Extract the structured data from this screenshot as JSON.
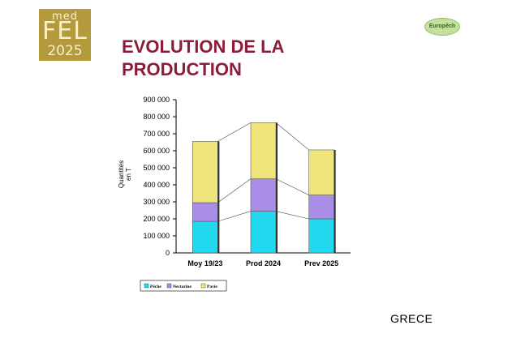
{
  "logos": {
    "medfel": {
      "line1": "med",
      "line2": "FEL",
      "line3": "2025",
      "color": "#b49a3c"
    },
    "europech": {
      "text": "Europêch",
      "color": "#8fbf56"
    }
  },
  "slide": {
    "title_line1": "EVOLUTION DE LA",
    "title_line2": "PRODUCTION",
    "country": "GRECE"
  },
  "chart_data": {
    "type": "bar",
    "stacked": true,
    "categories": [
      "Moy 19/23",
      "Prod 2024",
      "Prev 2025"
    ],
    "series": [
      {
        "name": "Pêche",
        "values": [
          185000,
          245000,
          200000
        ],
        "color": "#22d8ee"
      },
      {
        "name": "Nectarine",
        "values": [
          110000,
          190000,
          140000
        ],
        "color": "#a98de6"
      },
      {
        "name": "Pavie",
        "values": [
          360000,
          330000,
          265000
        ],
        "color": "#f0e57a"
      }
    ],
    "ylabel_line1": "Quantités",
    "ylabel_line2": "en T",
    "ylim": [
      0,
      900000
    ],
    "yticks": [
      "0",
      "100 000",
      "200 000",
      "300 000",
      "400 000",
      "500 000",
      "600 000",
      "700 000",
      "800 000",
      "900 000"
    ],
    "legend_position": "bottom-left",
    "grid": false
  }
}
